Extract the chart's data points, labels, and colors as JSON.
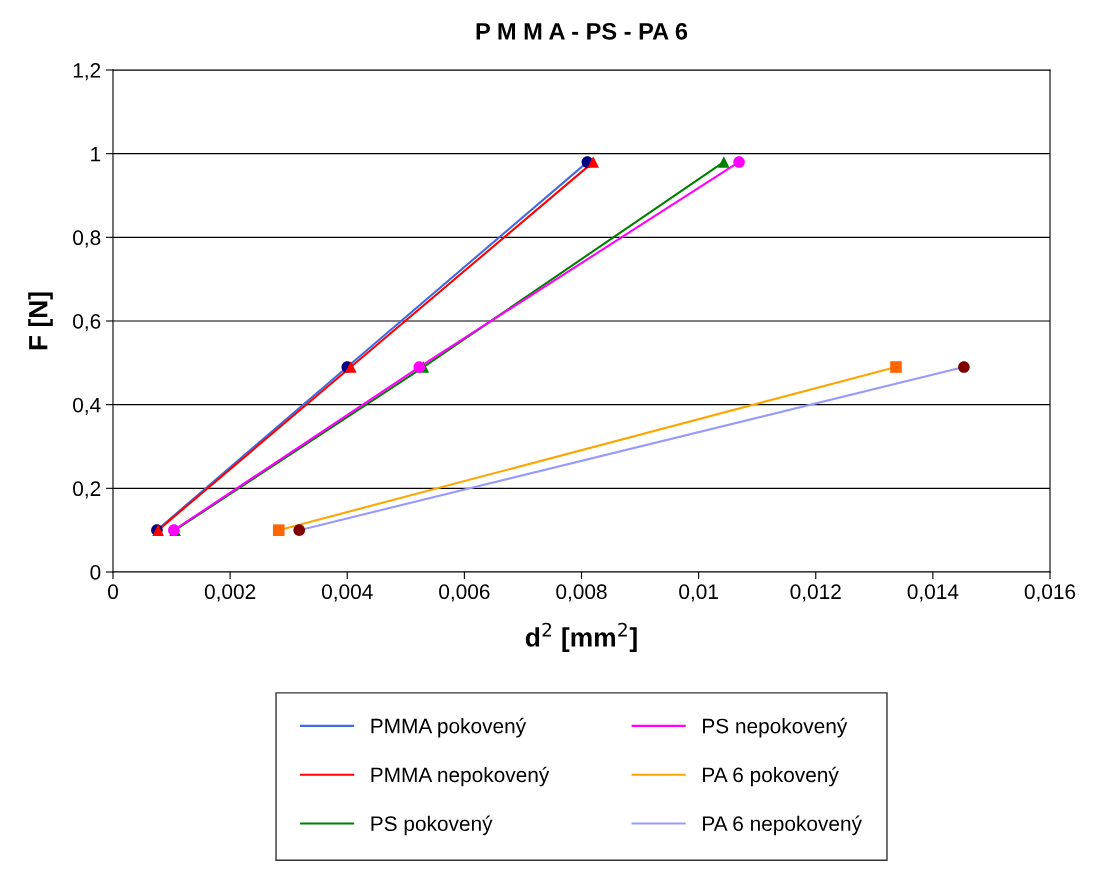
{
  "chart_data": {
    "type": "line",
    "title": "P M M A - PS - PA 6",
    "xlabel": "d$^{2}$ [mm$^{2}$]",
    "ylabel": "F [N]",
    "xlim": [
      0,
      0.016
    ],
    "xticks": [
      0,
      {
        "value": 0.002,
        "label": "0,002"
      },
      {
        "value": 0.004,
        "label": "0,004"
      },
      {
        "value": 0.006,
        "label": "0,006"
      },
      {
        "value": 0.008,
        "label": "0,008"
      },
      {
        "value": 0.01,
        "label": "0,01"
      },
      {
        "value": 0.012,
        "label": "0,012"
      },
      {
        "value": 0.014,
        "label": "0,014"
      },
      {
        "value": 0.016,
        "label": "0,016"
      }
    ],
    "ylim": [
      0,
      1.2
    ],
    "yticks": [
      0,
      {
        "value": 0.2,
        "label": "0,2"
      },
      {
        "value": 0.4,
        "label": "0,4"
      },
      {
        "value": 0.6,
        "label": "0,6"
      },
      {
        "value": 0.8,
        "label": "0,8"
      },
      1,
      {
        "value": 1.2,
        "label": "1,2"
      }
    ],
    "grid": "y",
    "legend": "bottom",
    "series": [
      {
        "name": "PMMA pokovený",
        "color": "#4169e1",
        "colors": [
          "#000080",
          "#000080",
          "#000080"
        ],
        "marker": "circle",
        "x": [
          0.00075,
          0.004,
          0.0081
        ],
        "values": [
          0.1,
          0.49,
          0.98
        ]
      },
      {
        "name": "PMMA nepokovený",
        "color": "#ff0000",
        "colors": [
          "#ff0000",
          "#ff0000",
          "#ff0000"
        ],
        "marker": "triangle",
        "x": [
          0.00077,
          0.00406,
          0.0082
        ],
        "values": [
          0.1,
          0.49,
          0.98
        ]
      },
      {
        "name": "PS pokovený",
        "color": "#008000",
        "colors": [
          "#008000",
          "#008000",
          "#008000"
        ],
        "marker": "triangle",
        "x": [
          0.00106,
          0.0053,
          0.01043
        ],
        "values": [
          0.1,
          0.49,
          0.98
        ]
      },
      {
        "name": "PS nepokovený",
        "color": "#ff00ff",
        "colors": [
          "#ff00ff",
          "#ff00ff",
          "#ff00ff"
        ],
        "marker": "circle",
        "x": [
          0.00104,
          0.00523,
          0.01069
        ],
        "values": [
          0.1,
          0.49,
          0.98
        ]
      },
      {
        "name": "PA 6 pokovený",
        "color": "#ffa500",
        "colors": [
          "#ff6600",
          "#ff6600"
        ],
        "marker": "square",
        "x": [
          0.00283,
          0.01337
        ],
        "values": [
          0.1,
          0.49
        ]
      },
      {
        "name": "PA 6 nepokovený",
        "color": "#9999ff",
        "colors": [
          "#800000",
          "#800000"
        ],
        "marker": "circle",
        "x": [
          0.00318,
          0.01453
        ],
        "values": [
          0.1,
          0.49
        ]
      }
    ]
  }
}
